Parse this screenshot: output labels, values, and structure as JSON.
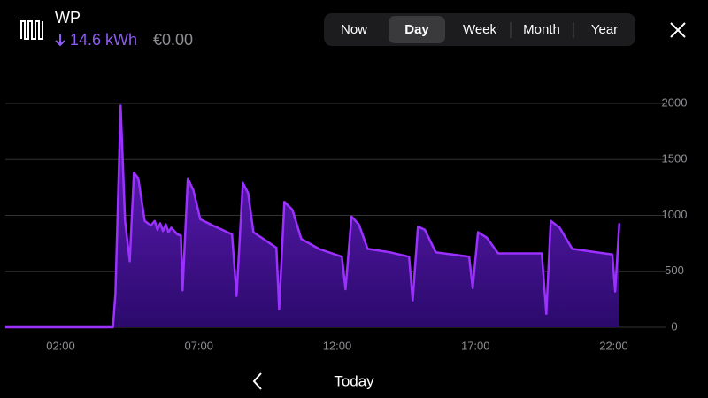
{
  "header": {
    "title": "WP",
    "energy": "14.6 kWh",
    "cost": "€0.00"
  },
  "tabs": [
    "Now",
    "Day",
    "Week",
    "Month",
    "Year"
  ],
  "selected_tab": 1,
  "nav": {
    "label": "Today"
  },
  "chart_data": {
    "type": "area",
    "color": "#9b30ff",
    "x": [
      0,
      3.89,
      3.98,
      4.17,
      4.33,
      4.5,
      4.65,
      4.81,
      5.04,
      5.26,
      5.4,
      5.5,
      5.6,
      5.7,
      5.8,
      5.9,
      6.0,
      6.22,
      6.35,
      6.41,
      6.6,
      6.8,
      7.05,
      7.5,
      8.2,
      8.36,
      8.59,
      8.78,
      8.97,
      9.42,
      9.8,
      9.9,
      10.09,
      10.38,
      10.7,
      11.34,
      12.17,
      12.3,
      12.52,
      12.78,
      13.1,
      13.9,
      14.6,
      14.73,
      14.92,
      15.17,
      15.56,
      16.77,
      16.9,
      17.09,
      17.41,
      17.82,
      19.4,
      19.56,
      19.72,
      20.04,
      20.5,
      21.95,
      22.05,
      22.2
    ],
    "values": [
      0,
      0,
      300,
      1980,
      950,
      590,
      1380,
      1330,
      950,
      910,
      950,
      870,
      930,
      860,
      920,
      850,
      890,
      830,
      820,
      330,
      1330,
      1225,
      965,
      910,
      830,
      280,
      1290,
      1200,
      850,
      775,
      710,
      160,
      1120,
      1050,
      790,
      700,
      630,
      340,
      990,
      920,
      700,
      670,
      630,
      240,
      900,
      870,
      670,
      630,
      350,
      850,
      800,
      660,
      660,
      120,
      950,
      890,
      700,
      650,
      320,
      930
    ],
    "xlim": [
      0,
      24
    ],
    "ylim": [
      0,
      2000
    ],
    "xticks": [
      {
        "value": 2,
        "label": "02:00"
      },
      {
        "value": 7,
        "label": "07:00"
      },
      {
        "value": 12,
        "label": "12:00"
      },
      {
        "value": 17,
        "label": "17:00"
      },
      {
        "value": 22,
        "label": "22:00"
      }
    ],
    "yticks": [
      0,
      500,
      1000,
      1500,
      2000
    ],
    "grid": true
  }
}
